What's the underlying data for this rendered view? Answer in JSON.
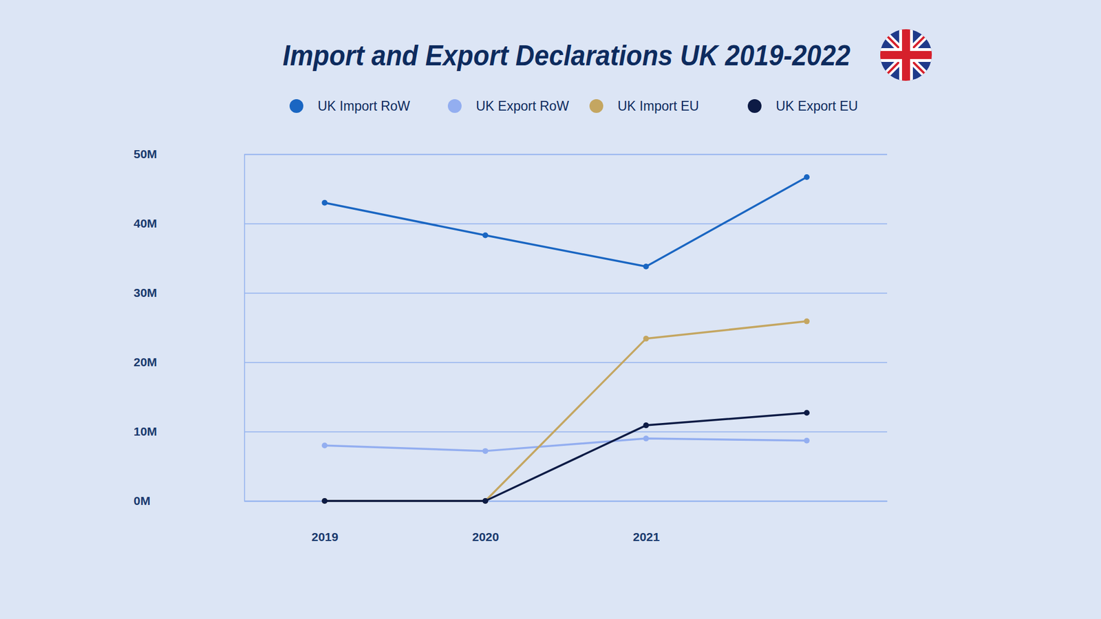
{
  "chart_data": {
    "type": "line",
    "title": "Import and Export Declarations UK 2019-2022",
    "categories": [
      "2019",
      "2020",
      "2021",
      null
    ],
    "series": [
      {
        "name": "UK Import RoW",
        "color": "#1a66c2",
        "values": [
          43.0,
          38.3,
          33.8,
          46.7
        ]
      },
      {
        "name": "UK Export RoW",
        "color": "#93aef0",
        "values": [
          8.0,
          7.2,
          9.0,
          8.7
        ]
      },
      {
        "name": "UK Import EU",
        "color": "#c4a661",
        "values": [
          0,
          0,
          23.4,
          25.9
        ]
      },
      {
        "name": "UK Export EU",
        "color": "#0d1b45",
        "values": [
          0,
          0,
          10.9,
          12.7
        ]
      }
    ],
    "ylim": [
      0,
      50
    ],
    "yticks": [
      {
        "value": 0,
        "label": "0M"
      },
      {
        "value": 10,
        "label": "10M"
      },
      {
        "value": 20,
        "label": "20M"
      },
      {
        "value": 30,
        "label": "30M"
      },
      {
        "value": 40,
        "label": "40M"
      },
      {
        "value": 50,
        "label": "50M"
      }
    ],
    "grid": true,
    "legend": "top",
    "marker": "circle"
  }
}
